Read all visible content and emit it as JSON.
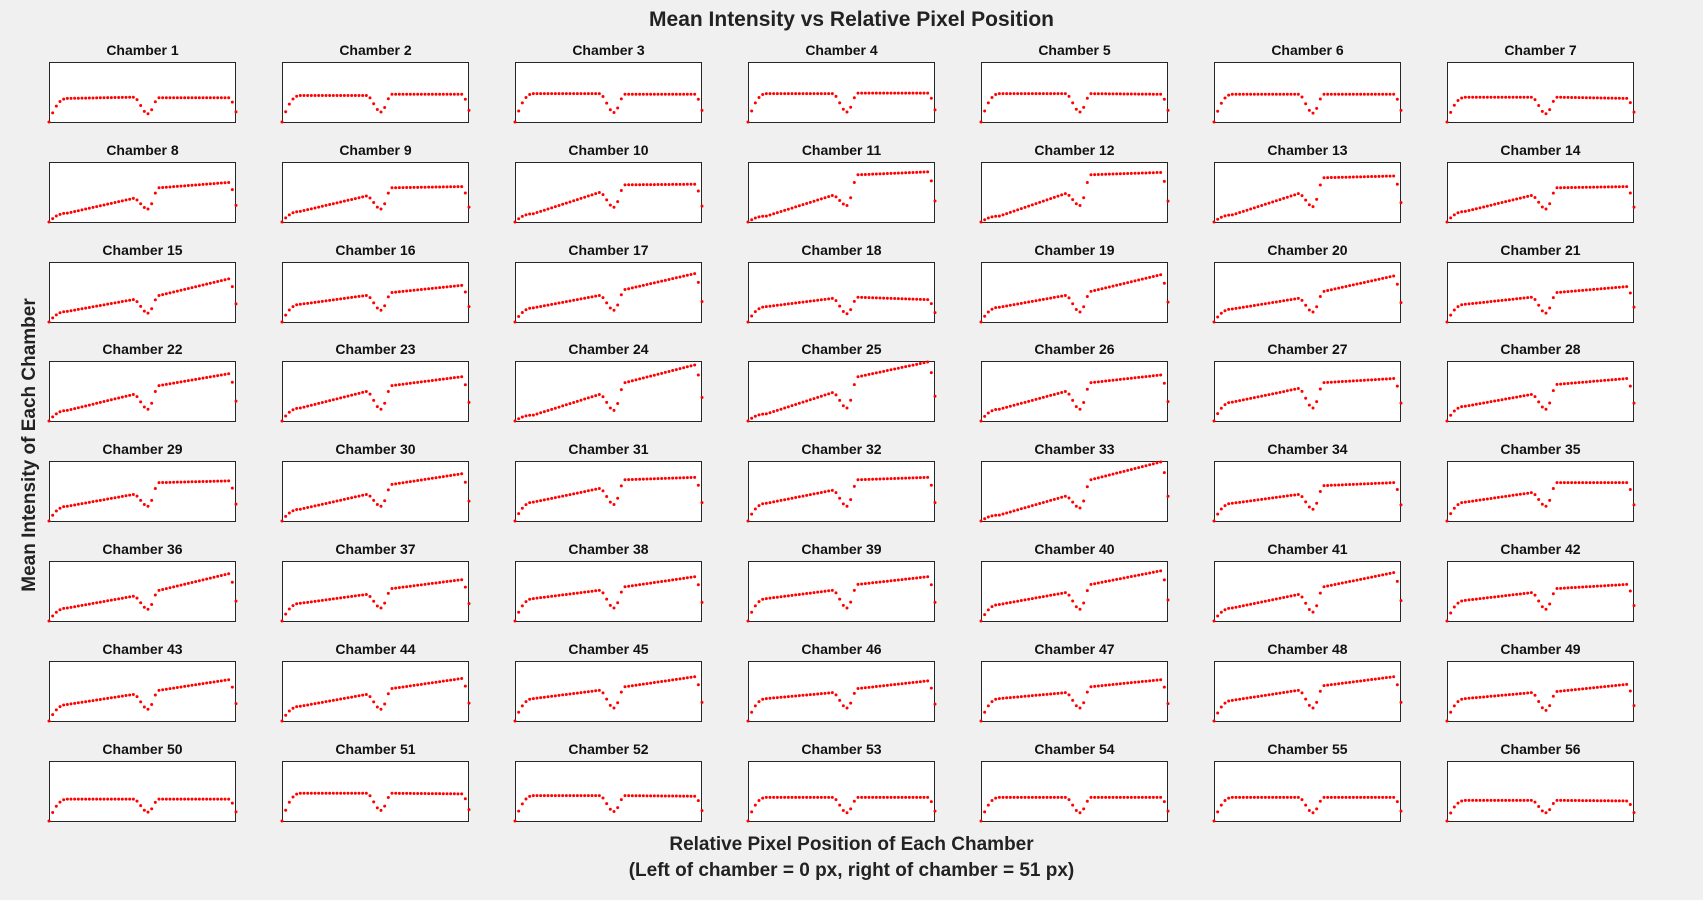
{
  "figure": {
    "title": "Mean Intensity vs Relative Pixel Position",
    "ylabel": "Mean Intensity of Each Chamber",
    "xlabel_line1": "Relative Pixel Position of Each Chamber",
    "xlabel_line2": "(Left of chamber = 0 px,  right of chamber = 51 px)",
    "marker_color": "#ff0000",
    "rows": 8,
    "cols": 7
  },
  "chart_data": {
    "type": "scatter",
    "title": "Mean Intensity vs Relative Pixel Position",
    "xlabel": "Relative Pixel Position of Each Chamber (Left of chamber = 0 px,  right of chamber = 51 px)",
    "ylabel": "Mean Intensity of Each Chamber",
    "xlim": [
      0,
      51
    ],
    "ylim": [
      0,
      1
    ],
    "grid": false,
    "legend": "none",
    "x": [
      0,
      1,
      2,
      3,
      4,
      5,
      6,
      7,
      8,
      9,
      10,
      11,
      12,
      13,
      14,
      15,
      16,
      17,
      18,
      19,
      20,
      21,
      22,
      23,
      24,
      25,
      26,
      27,
      28,
      29,
      30,
      31,
      32,
      33,
      34,
      35,
      36,
      37,
      38,
      39,
      40,
      41,
      42,
      43,
      44,
      45,
      46,
      47,
      48,
      49,
      50,
      51
    ],
    "shape_note_profile": "Each chamber is a dotted profile: steep rise from ~0 to a plateau over px 0-5, a dip centered near px 27, a second plateau/slope, and a drop at px 50-51. left_start/left_end are the plateau levels at px 5 and px 23; right_start/right_end at px 30 and px 49; dip_min is the trough level.",
    "chambers": [
      {
        "name": "Chamber 1",
        "left_start": 0.4,
        "left_end": 0.42,
        "dip_min": 0.14,
        "right_start": 0.41,
        "right_end": 0.41
      },
      {
        "name": "Chamber 2",
        "left_start": 0.45,
        "left_end": 0.45,
        "dip_min": 0.17,
        "right_start": 0.47,
        "right_end": 0.47
      },
      {
        "name": "Chamber 3",
        "left_start": 0.48,
        "left_end": 0.48,
        "dip_min": 0.16,
        "right_start": 0.47,
        "right_end": 0.47
      },
      {
        "name": "Chamber 4",
        "left_start": 0.48,
        "left_end": 0.48,
        "dip_min": 0.17,
        "right_start": 0.49,
        "right_end": 0.49
      },
      {
        "name": "Chamber 5",
        "left_start": 0.48,
        "left_end": 0.48,
        "dip_min": 0.17,
        "right_start": 0.48,
        "right_end": 0.47
      },
      {
        "name": "Chamber 6",
        "left_start": 0.47,
        "left_end": 0.47,
        "dip_min": 0.15,
        "right_start": 0.47,
        "right_end": 0.47
      },
      {
        "name": "Chamber 7",
        "left_start": 0.42,
        "left_end": 0.42,
        "dip_min": 0.14,
        "right_start": 0.42,
        "right_end": 0.4
      },
      {
        "name": "Chamber 8",
        "left_start": 0.15,
        "left_end": 0.4,
        "dip_min": 0.22,
        "right_start": 0.58,
        "right_end": 0.67
      },
      {
        "name": "Chamber 9",
        "left_start": 0.18,
        "left_end": 0.44,
        "dip_min": 0.22,
        "right_start": 0.58,
        "right_end": 0.6
      },
      {
        "name": "Chamber 10",
        "left_start": 0.14,
        "left_end": 0.5,
        "dip_min": 0.25,
        "right_start": 0.63,
        "right_end": 0.64
      },
      {
        "name": "Chamber 11",
        "left_start": 0.1,
        "left_end": 0.45,
        "dip_min": 0.28,
        "right_start": 0.8,
        "right_end": 0.85
      },
      {
        "name": "Chamber 12",
        "left_start": 0.1,
        "left_end": 0.48,
        "dip_min": 0.28,
        "right_start": 0.8,
        "right_end": 0.84
      },
      {
        "name": "Chamber 13",
        "left_start": 0.12,
        "left_end": 0.48,
        "dip_min": 0.26,
        "right_start": 0.75,
        "right_end": 0.78
      },
      {
        "name": "Chamber 14",
        "left_start": 0.18,
        "left_end": 0.45,
        "dip_min": 0.22,
        "right_start": 0.58,
        "right_end": 0.6
      },
      {
        "name": "Chamber 15",
        "left_start": 0.18,
        "left_end": 0.38,
        "dip_min": 0.15,
        "right_start": 0.45,
        "right_end": 0.73
      },
      {
        "name": "Chamber 16",
        "left_start": 0.3,
        "left_end": 0.45,
        "dip_min": 0.2,
        "right_start": 0.5,
        "right_end": 0.62
      },
      {
        "name": "Chamber 17",
        "left_start": 0.24,
        "left_end": 0.45,
        "dip_min": 0.2,
        "right_start": 0.55,
        "right_end": 0.82
      },
      {
        "name": "Chamber 18",
        "left_start": 0.26,
        "left_end": 0.4,
        "dip_min": 0.14,
        "right_start": 0.42,
        "right_end": 0.38
      },
      {
        "name": "Chamber 19",
        "left_start": 0.25,
        "left_end": 0.45,
        "dip_min": 0.17,
        "right_start": 0.52,
        "right_end": 0.8
      },
      {
        "name": "Chamber 20",
        "left_start": 0.22,
        "left_end": 0.4,
        "dip_min": 0.17,
        "right_start": 0.52,
        "right_end": 0.78
      },
      {
        "name": "Chamber 21",
        "left_start": 0.3,
        "left_end": 0.42,
        "dip_min": 0.15,
        "right_start": 0.5,
        "right_end": 0.6
      },
      {
        "name": "Chamber 22",
        "left_start": 0.18,
        "left_end": 0.45,
        "dip_min": 0.2,
        "right_start": 0.6,
        "right_end": 0.8
      },
      {
        "name": "Chamber 23",
        "left_start": 0.22,
        "left_end": 0.5,
        "dip_min": 0.2,
        "right_start": 0.6,
        "right_end": 0.75
      },
      {
        "name": "Chamber 24",
        "left_start": 0.1,
        "left_end": 0.45,
        "dip_min": 0.18,
        "right_start": 0.65,
        "right_end": 0.95
      },
      {
        "name": "Chamber 25",
        "left_start": 0.12,
        "left_end": 0.48,
        "dip_min": 0.22,
        "right_start": 0.75,
        "right_end": 1.0
      },
      {
        "name": "Chamber 26",
        "left_start": 0.2,
        "left_end": 0.5,
        "dip_min": 0.2,
        "right_start": 0.65,
        "right_end": 0.78
      },
      {
        "name": "Chamber 27",
        "left_start": 0.32,
        "left_end": 0.55,
        "dip_min": 0.22,
        "right_start": 0.65,
        "right_end": 0.72
      },
      {
        "name": "Chamber 28",
        "left_start": 0.25,
        "left_end": 0.45,
        "dip_min": 0.2,
        "right_start": 0.62,
        "right_end": 0.72
      },
      {
        "name": "Chamber 29",
        "left_start": 0.25,
        "left_end": 0.45,
        "dip_min": 0.25,
        "right_start": 0.65,
        "right_end": 0.68
      },
      {
        "name": "Chamber 30",
        "left_start": 0.2,
        "left_end": 0.45,
        "dip_min": 0.25,
        "right_start": 0.62,
        "right_end": 0.8
      },
      {
        "name": "Chamber 31",
        "left_start": 0.32,
        "left_end": 0.55,
        "dip_min": 0.28,
        "right_start": 0.7,
        "right_end": 0.74
      },
      {
        "name": "Chamber 32",
        "left_start": 0.3,
        "left_end": 0.52,
        "dip_min": 0.25,
        "right_start": 0.7,
        "right_end": 0.74
      },
      {
        "name": "Chamber 33",
        "left_start": 0.1,
        "left_end": 0.42,
        "dip_min": 0.22,
        "right_start": 0.7,
        "right_end": 1.0
      },
      {
        "name": "Chamber 34",
        "left_start": 0.3,
        "left_end": 0.45,
        "dip_min": 0.2,
        "right_start": 0.6,
        "right_end": 0.65
      },
      {
        "name": "Chamber 35",
        "left_start": 0.32,
        "left_end": 0.48,
        "dip_min": 0.25,
        "right_start": 0.65,
        "right_end": 0.65
      },
      {
        "name": "Chamber 36",
        "left_start": 0.22,
        "left_end": 0.42,
        "dip_min": 0.2,
        "right_start": 0.52,
        "right_end": 0.8
      },
      {
        "name": "Chamber 37",
        "left_start": 0.3,
        "left_end": 0.45,
        "dip_min": 0.22,
        "right_start": 0.55,
        "right_end": 0.7
      },
      {
        "name": "Chamber 38",
        "left_start": 0.38,
        "left_end": 0.52,
        "dip_min": 0.22,
        "right_start": 0.58,
        "right_end": 0.75
      },
      {
        "name": "Chamber 39",
        "left_start": 0.38,
        "left_end": 0.52,
        "dip_min": 0.22,
        "right_start": 0.62,
        "right_end": 0.75
      },
      {
        "name": "Chamber 40",
        "left_start": 0.28,
        "left_end": 0.48,
        "dip_min": 0.2,
        "right_start": 0.62,
        "right_end": 0.85
      },
      {
        "name": "Chamber 41",
        "left_start": 0.22,
        "left_end": 0.45,
        "dip_min": 0.15,
        "right_start": 0.58,
        "right_end": 0.82
      },
      {
        "name": "Chamber 42",
        "left_start": 0.35,
        "left_end": 0.48,
        "dip_min": 0.2,
        "right_start": 0.55,
        "right_end": 0.62
      },
      {
        "name": "Chamber 43",
        "left_start": 0.28,
        "left_end": 0.45,
        "dip_min": 0.2,
        "right_start": 0.52,
        "right_end": 0.7
      },
      {
        "name": "Chamber 44",
        "left_start": 0.25,
        "left_end": 0.45,
        "dip_min": 0.2,
        "right_start": 0.55,
        "right_end": 0.72
      },
      {
        "name": "Chamber 45",
        "left_start": 0.38,
        "left_end": 0.52,
        "dip_min": 0.22,
        "right_start": 0.58,
        "right_end": 0.75
      },
      {
        "name": "Chamber 46",
        "left_start": 0.38,
        "left_end": 0.48,
        "dip_min": 0.22,
        "right_start": 0.55,
        "right_end": 0.68
      },
      {
        "name": "Chamber 47",
        "left_start": 0.38,
        "left_end": 0.48,
        "dip_min": 0.22,
        "right_start": 0.58,
        "right_end": 0.7
      },
      {
        "name": "Chamber 48",
        "left_start": 0.35,
        "left_end": 0.52,
        "dip_min": 0.22,
        "right_start": 0.6,
        "right_end": 0.75
      },
      {
        "name": "Chamber 49",
        "left_start": 0.38,
        "left_end": 0.48,
        "dip_min": 0.18,
        "right_start": 0.5,
        "right_end": 0.62
      },
      {
        "name": "Chamber 50",
        "left_start": 0.37,
        "left_end": 0.37,
        "dip_min": 0.15,
        "right_start": 0.37,
        "right_end": 0.37
      },
      {
        "name": "Chamber 51",
        "left_start": 0.47,
        "left_end": 0.47,
        "dip_min": 0.18,
        "right_start": 0.47,
        "right_end": 0.46
      },
      {
        "name": "Chamber 52",
        "left_start": 0.43,
        "left_end": 0.43,
        "dip_min": 0.16,
        "right_start": 0.43,
        "right_end": 0.42
      },
      {
        "name": "Chamber 53",
        "left_start": 0.4,
        "left_end": 0.4,
        "dip_min": 0.14,
        "right_start": 0.4,
        "right_end": 0.4
      },
      {
        "name": "Chamber 54",
        "left_start": 0.4,
        "left_end": 0.4,
        "dip_min": 0.14,
        "right_start": 0.4,
        "right_end": 0.4
      },
      {
        "name": "Chamber 55",
        "left_start": 0.4,
        "left_end": 0.4,
        "dip_min": 0.14,
        "right_start": 0.4,
        "right_end": 0.4
      },
      {
        "name": "Chamber 56",
        "left_start": 0.35,
        "left_end": 0.35,
        "dip_min": 0.14,
        "right_start": 0.35,
        "right_end": 0.34
      }
    ]
  }
}
